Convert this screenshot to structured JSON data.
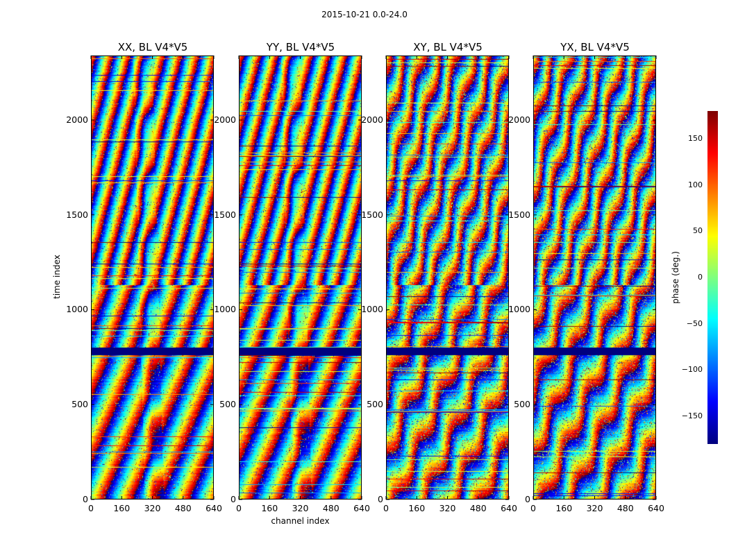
{
  "chart_data": {
    "type": "heatmap",
    "suptitle": "2015-10-21 0.0-24.0",
    "xlabel": "channel index",
    "ylabel": "time index",
    "colormap": "jet",
    "colorbar": {
      "label": "phase (deg.)",
      "range": [
        -180,
        180
      ],
      "ticks": [
        150,
        100,
        50,
        0,
        -50,
        -100,
        -150
      ],
      "tick_labels": [
        "150",
        "100",
        "50",
        "0",
        "−50",
        "−100",
        "−150"
      ]
    },
    "x_range": [
      0,
      640
    ],
    "y_range": [
      0,
      2340
    ],
    "x_ticks": [
      0,
      160,
      320,
      480,
      640
    ],
    "x_tick_labels": [
      "0",
      "160",
      "320",
      "480",
      "640"
    ],
    "y_ticks": [
      0,
      500,
      1000,
      1500,
      2000
    ],
    "y_tick_labels": [
      "0",
      "500",
      "1000",
      "1500",
      "2000"
    ],
    "flagged_band": [
      760,
      800
    ],
    "panels": [
      {
        "title": "XX, BL V4*V5",
        "pol": "XX"
      },
      {
        "title": "YY, BL V4*V5",
        "pol": "YY"
      },
      {
        "title": "XY, BL V4*V5",
        "pol": "XY"
      },
      {
        "title": "YX, BL V4*V5",
        "pol": "YX"
      }
    ]
  }
}
